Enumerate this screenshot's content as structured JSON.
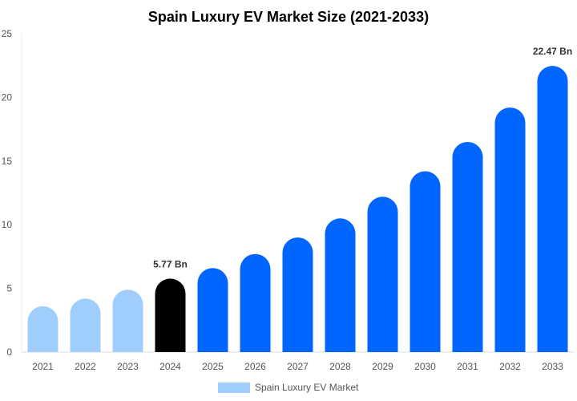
{
  "chart_data": {
    "type": "bar",
    "title": "Spain Luxury EV Market Size (2021-2033)",
    "xlabel": "",
    "ylabel": "",
    "ylim": [
      0,
      25
    ],
    "yticks": [
      0,
      5,
      10,
      15,
      20,
      25
    ],
    "categories": [
      "2021",
      "2022",
      "2023",
      "2024",
      "2025",
      "2026",
      "2027",
      "2028",
      "2029",
      "2030",
      "2031",
      "2032",
      "2033"
    ],
    "series": [
      {
        "name": "Spain Luxury EV Market",
        "values": [
          3.6,
          4.2,
          4.9,
          5.77,
          6.6,
          7.7,
          9.0,
          10.5,
          12.2,
          14.2,
          16.5,
          19.2,
          22.47
        ]
      }
    ],
    "bar_colors": {
      "historical": "#9fcdfc",
      "base_year": "#000000",
      "forecast": "#0066ff"
    },
    "base_year_index": 3,
    "data_labels": [
      {
        "index": 3,
        "text": "5.77 Bn"
      },
      {
        "index": 12,
        "text": "22.47 Bn"
      }
    ],
    "legend": {
      "label": "Spain Luxury EV Market",
      "color": "#9fcdfc",
      "position": "bottom"
    },
    "grid": false
  }
}
